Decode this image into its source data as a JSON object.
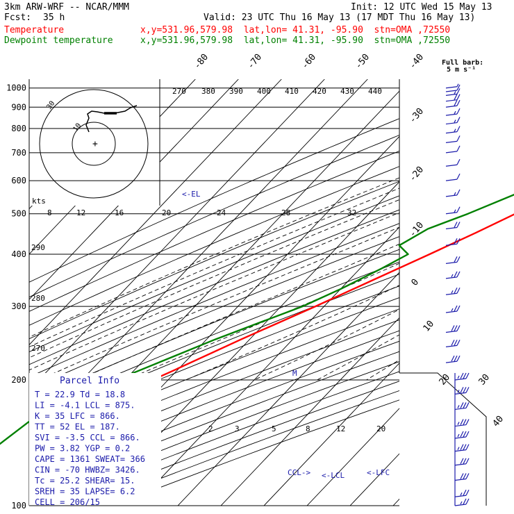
{
  "header": {
    "model": "3km ARW-WRF -- NCAR/MMM",
    "init": "Init: 12 UTC Wed 15 May 13",
    "fcst_label": "Fcst:",
    "fcst_value": "35 h",
    "valid": "Valid: 23 UTC Thu 16 May 13 (17 MDT Thu 16 May 13)",
    "temp_label": "Temperature",
    "temp_info": "x,y=531.96,579.98  lat,lon= 41.31, -95.90  stn=OMA ,72550",
    "dew_label": "Dewpoint temperature",
    "dew_info": "x,y=531.96,579.98  lat,lon= 41.31, -95.90  stn=OMA ,72550"
  },
  "colors": {
    "temperature": "#ff0000",
    "dewpoint": "#008000",
    "wind": "#1a1aaa",
    "stats": "#1a1aaa",
    "grid": "#000000"
  },
  "barb_legend": {
    "line1": "Full barb:",
    "line2": "5 m s⁻¹"
  },
  "hodograph": {
    "ring_labels": [
      "10",
      "30"
    ],
    "theta_labels": [
      "270",
      "380",
      "390",
      "400",
      "410",
      "420",
      "430",
      "440"
    ]
  },
  "kts_label": "kts",
  "el_marker": "<-EL",
  "m_marker": "M",
  "lcl_markers": [
    "CCL->",
    "<-LCL",
    "<-LFC"
  ],
  "parcel": {
    "title": "Parcel Info",
    "rows": [
      "T  =   22.9  Td =  18.8",
      "LI =   -4.1  LCL =  875.",
      "K  =     35  LFC =  866.",
      "TT =     52  EL  =  187.",
      "SVI =  -3.5  CCL =  866.",
      "PW =   3.82  YGP =   0.2",
      "CAPE =  1361  SWEAT=  366",
      "CIN =    -70  HWBZ= 3426.",
      "Tc =   25.2  SHEAR=  15.",
      "SREH =   35  LAPSE=  6.2",
      "CELL = 206/15"
    ]
  },
  "chart_data": {
    "type": "line",
    "title": "",
    "xlabel": "",
    "ylabel": "",
    "pressure_levels": [
      100,
      200,
      300,
      400,
      500,
      600,
      700,
      800,
      900,
      1000
    ],
    "isotherm_labels": [
      "-80",
      "-70",
      "-60",
      "-50",
      "-40",
      "-30",
      "-20",
      "-10",
      "0",
      "10",
      "20",
      "30",
      "40"
    ],
    "mixing_ratio_labels": [
      "2",
      "3",
      "5",
      "8",
      "12",
      "20"
    ],
    "theta_e_labels": [
      "8",
      "12",
      "16",
      "20",
      "24",
      "28",
      "32"
    ],
    "theta_labels": [
      "290",
      "280",
      "270"
    ],
    "series": [
      {
        "name": "Temperature",
        "color": "#ff0000",
        "points": [
          [
            992,
            27
          ],
          [
            970,
            27
          ],
          [
            950,
            25.5
          ],
          [
            920,
            23
          ],
          [
            900,
            21.8
          ],
          [
            880,
            20.5
          ],
          [
            860,
            19.8
          ],
          [
            830,
            18.5
          ],
          [
            800,
            17
          ],
          [
            760,
            14
          ],
          [
            700,
            9
          ],
          [
            650,
            5
          ],
          [
            600,
            1.5
          ],
          [
            560,
            -1.5
          ],
          [
            500,
            -6
          ],
          [
            450,
            -11
          ],
          [
            400,
            -17
          ],
          [
            350,
            -24
          ],
          [
            300,
            -32
          ],
          [
            250,
            -42
          ],
          [
            210,
            -51
          ],
          [
            195,
            -55
          ],
          [
            180,
            -56
          ],
          [
            165,
            -55
          ],
          [
            150,
            -53
          ],
          [
            140,
            -51
          ],
          [
            130,
            -51
          ],
          [
            120,
            -48
          ],
          [
            110,
            -45
          ],
          [
            102,
            -42
          ]
        ]
      },
      {
        "name": "Dewpoint temperature",
        "color": "#008000",
        "points": [
          [
            990,
            18.8
          ],
          [
            960,
            18.2
          ],
          [
            930,
            17
          ],
          [
            900,
            16.5
          ],
          [
            880,
            16
          ],
          [
            850,
            13
          ],
          [
            800,
            6
          ],
          [
            760,
            0
          ],
          [
            700,
            -5
          ],
          [
            650,
            -4
          ],
          [
            620,
            -5
          ],
          [
            600,
            -7
          ],
          [
            560,
            -10
          ],
          [
            500,
            -17
          ],
          [
            460,
            -23
          ],
          [
            420,
            -26
          ],
          [
            400,
            -22
          ],
          [
            370,
            -25
          ],
          [
            330,
            -30
          ],
          [
            300,
            -35
          ],
          [
            250,
            -48
          ],
          [
            210,
            -59
          ],
          [
            195,
            -64
          ],
          [
            180,
            -68
          ],
          [
            160,
            -73
          ],
          [
            140,
            -75
          ],
          [
            120,
            -73
          ],
          [
            110,
            -70
          ],
          [
            100,
            -69
          ]
        ]
      }
    ],
    "wind_barbs": [
      {
        "p": 1000,
        "spd": 5,
        "dir": 200
      },
      {
        "p": 980,
        "spd": 10,
        "dir": 210
      },
      {
        "p": 960,
        "spd": 15,
        "dir": 220
      },
      {
        "p": 930,
        "spd": 20,
        "dir": 225
      },
      {
        "p": 900,
        "spd": 20,
        "dir": 230
      },
      {
        "p": 860,
        "spd": 15,
        "dir": 240
      },
      {
        "p": 820,
        "spd": 15,
        "dir": 245
      },
      {
        "p": 780,
        "spd": 15,
        "dir": 250
      },
      {
        "p": 740,
        "spd": 10,
        "dir": 255
      },
      {
        "p": 700,
        "spd": 10,
        "dir": 260
      },
      {
        "p": 650,
        "spd": 10,
        "dir": 262
      },
      {
        "p": 600,
        "spd": 10,
        "dir": 265
      },
      {
        "p": 550,
        "spd": 15,
        "dir": 265
      },
      {
        "p": 500,
        "spd": 15,
        "dir": 268
      },
      {
        "p": 460,
        "spd": 20,
        "dir": 268
      },
      {
        "p": 420,
        "spd": 20,
        "dir": 270
      },
      {
        "p": 380,
        "spd": 20,
        "dir": 270
      },
      {
        "p": 350,
        "spd": 25,
        "dir": 270
      },
      {
        "p": 320,
        "spd": 25,
        "dir": 270
      },
      {
        "p": 290,
        "spd": 25,
        "dir": 270
      },
      {
        "p": 260,
        "spd": 30,
        "dir": 272
      },
      {
        "p": 240,
        "spd": 30,
        "dir": 272
      },
      {
        "p": 220,
        "spd": 30,
        "dir": 272
      },
      {
        "p": 200,
        "spd": 35,
        "dir": 272
      },
      {
        "p": 185,
        "spd": 35,
        "dir": 272
      },
      {
        "p": 170,
        "spd": 35,
        "dir": 275
      },
      {
        "p": 155,
        "spd": 35,
        "dir": 275
      },
      {
        "p": 145,
        "spd": 35,
        "dir": 275
      },
      {
        "p": 135,
        "spd": 35,
        "dir": 275
      },
      {
        "p": 125,
        "spd": 30,
        "dir": 275
      },
      {
        "p": 115,
        "spd": 30,
        "dir": 275
      },
      {
        "p": 105,
        "spd": 25,
        "dir": 275
      },
      {
        "p": 100,
        "spd": 25,
        "dir": 275
      }
    ]
  }
}
